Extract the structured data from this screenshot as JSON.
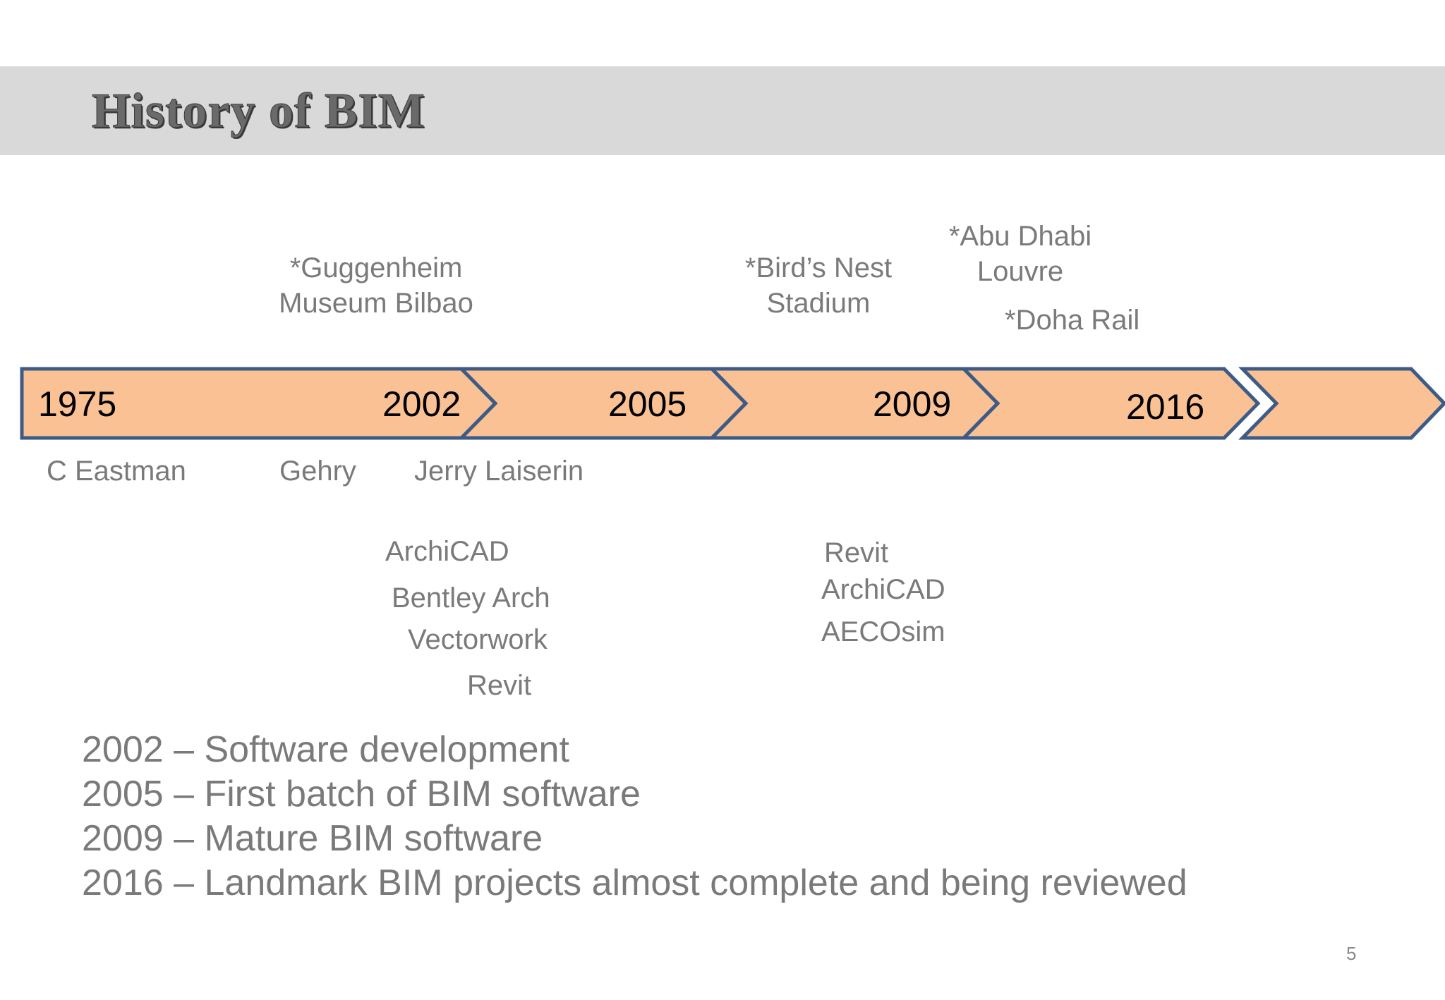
{
  "title": "History of BIM",
  "colors": {
    "arrow_fill": "#f9c194",
    "arrow_stroke": "#3e5b86",
    "title_bar": "#d9d9d9",
    "label_text": "#7a7a7a"
  },
  "timeline": {
    "years": [
      "1975",
      "2002",
      "2005",
      "2009",
      "2016"
    ]
  },
  "above": {
    "guggenheim": [
      "*Guggenheim",
      "Museum Bilbao"
    ],
    "birds_nest": [
      "*Bird’s Nest",
      "Stadium"
    ],
    "abu_dhabi": [
      "*Abu Dhabi",
      "Louvre"
    ],
    "doha": "*Doha Rail"
  },
  "below": {
    "people": [
      "C Eastman",
      "Gehry",
      "Jerry Laiserin"
    ],
    "software_2002": [
      "ArchiCAD",
      "Bentley Arch",
      "Vectorwork",
      "Revit"
    ],
    "software_2009": [
      "Revit",
      "ArchiCAD",
      "AECOsim"
    ]
  },
  "notes": [
    "2002 – Software development",
    "2005 – First batch of BIM software",
    "2009 – Mature BIM software",
    "2016 – Landmark BIM projects almost complete and being reviewed"
  ],
  "page_number": "5"
}
